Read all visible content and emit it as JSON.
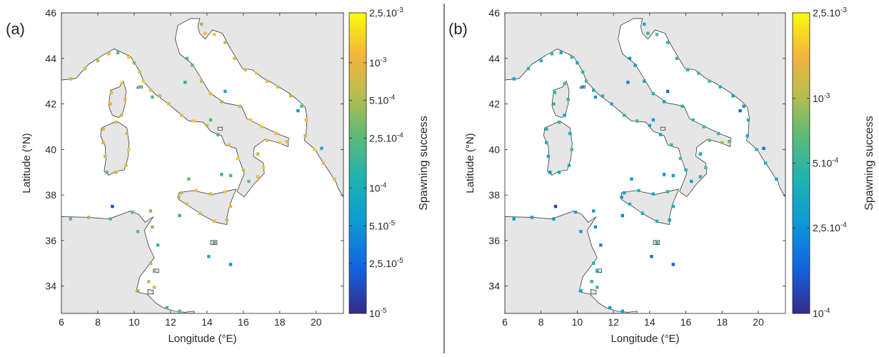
{
  "panels": [
    {
      "id": "a",
      "panel_label": "(a)",
      "xlabel": "Longitude (°E)",
      "ylabel": "Latitude (°N)",
      "colorbar_label": "Spawning success",
      "colorbar_ticks": [
        {
          "value": 0.0025,
          "label": "2,5.10",
          "exp": "-3"
        },
        {
          "value": 0.001,
          "label": "10",
          "exp": "-3"
        },
        {
          "value": 0.0005,
          "label": "5.10",
          "exp": "-4"
        },
        {
          "value": 0.00025,
          "label": "2,5.10",
          "exp": "-4"
        },
        {
          "value": 0.0001,
          "label": "10",
          "exp": "-4"
        },
        {
          "value": 5e-05,
          "label": "5.10",
          "exp": "-5"
        },
        {
          "value": 2.5e-05,
          "label": "2,5.10",
          "exp": "-5"
        },
        {
          "value": 1e-05,
          "label": "10",
          "exp": "-5"
        }
      ],
      "colorbar_range": [
        1e-05,
        0.0025
      ],
      "colorbar_scale": "log"
    },
    {
      "id": "b",
      "panel_label": "(b)",
      "xlabel": "Longitude (°E)",
      "ylabel": "Latitude (°N)",
      "colorbar_label": "Spawning success",
      "colorbar_ticks": [
        {
          "value": 0.0025,
          "label": "2,5.10",
          "exp": "-3"
        },
        {
          "value": 0.001,
          "label": "10",
          "exp": "-3"
        },
        {
          "value": 0.0005,
          "label": "5.10",
          "exp": "-4"
        },
        {
          "value": 0.00025,
          "label": "2,5.10",
          "exp": "-4"
        },
        {
          "value": 0.0001,
          "label": "10",
          "exp": "-4"
        }
      ],
      "colorbar_range": [
        0.0001,
        0.0025
      ],
      "colorbar_scale": "log"
    }
  ],
  "map": {
    "lon_range": [
      6,
      21.5
    ],
    "lat_range": [
      32.8,
      46
    ],
    "x_ticks": [
      6,
      8,
      10,
      12,
      14,
      16,
      18,
      20
    ],
    "y_ticks": [
      34,
      36,
      38,
      40,
      42,
      44,
      46
    ],
    "land_color": "#e6e6e6",
    "sea_color": "#ffffff",
    "coast_color": "#222222",
    "colormap": "parula"
  }
}
